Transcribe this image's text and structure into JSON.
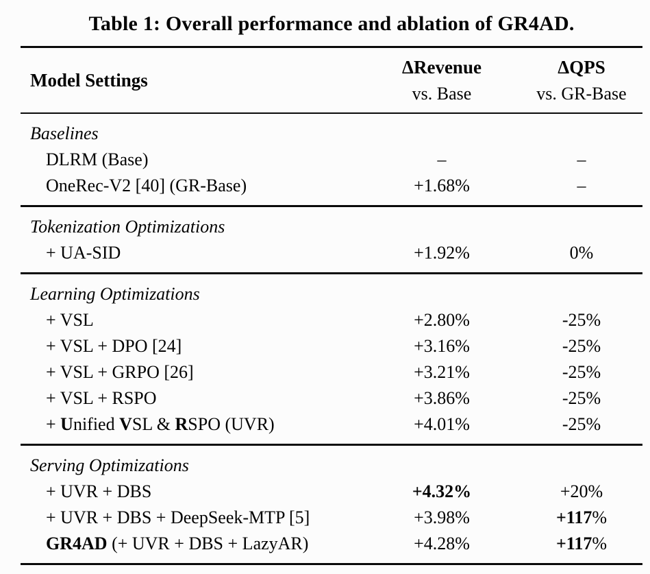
{
  "caption": "Table 1: Overall performance and ablation of GR4AD.",
  "columns": {
    "model": "Model Settings",
    "revenue": {
      "title": "ΔRevenue",
      "subtitle": "vs. Base"
    },
    "qps": {
      "title": "ΔQPS",
      "subtitle": "vs. GR-Base"
    }
  },
  "sections": [
    {
      "header": "Baselines",
      "rows": [
        {
          "label": [
            {
              "t": "DLRM (Base)"
            }
          ],
          "revenue": [
            {
              "t": "–"
            }
          ],
          "qps": [
            {
              "t": "–"
            }
          ]
        },
        {
          "label": [
            {
              "t": "OneRec-V2 [40] (GR-Base)"
            }
          ],
          "revenue": [
            {
              "t": "+1.68%"
            }
          ],
          "qps": [
            {
              "t": "–"
            }
          ]
        }
      ]
    },
    {
      "header": "Tokenization Optimizations",
      "rows": [
        {
          "label": [
            {
              "t": "+ UA-SID"
            }
          ],
          "revenue": [
            {
              "t": "+1.92%"
            }
          ],
          "qps": [
            {
              "t": "0%"
            }
          ]
        }
      ]
    },
    {
      "header": "Learning Optimizations",
      "rows": [
        {
          "label": [
            {
              "t": "+ VSL"
            }
          ],
          "revenue": [
            {
              "t": "+2.80%"
            }
          ],
          "qps": [
            {
              "t": "-25%"
            }
          ]
        },
        {
          "label": [
            {
              "t": "+ VSL + DPO [24]"
            }
          ],
          "revenue": [
            {
              "t": "+3.16%"
            }
          ],
          "qps": [
            {
              "t": "-25%"
            }
          ]
        },
        {
          "label": [
            {
              "t": "+ VSL + GRPO [26]"
            }
          ],
          "revenue": [
            {
              "t": "+3.21%"
            }
          ],
          "qps": [
            {
              "t": "-25%"
            }
          ]
        },
        {
          "label": [
            {
              "t": "+ VSL + RSPO"
            }
          ],
          "revenue": [
            {
              "t": "+3.86%"
            }
          ],
          "qps": [
            {
              "t": "-25%"
            }
          ]
        },
        {
          "label": [
            {
              "t": "+ "
            },
            {
              "t": "U",
              "b": true
            },
            {
              "t": "nified "
            },
            {
              "t": "V",
              "b": true
            },
            {
              "t": "SL & "
            },
            {
              "t": "R",
              "b": true
            },
            {
              "t": "SPO (UVR)"
            }
          ],
          "revenue": [
            {
              "t": "+4.01%"
            }
          ],
          "qps": [
            {
              "t": "-25%"
            }
          ]
        }
      ]
    },
    {
      "header": "Serving Optimizations",
      "rows": [
        {
          "label": [
            {
              "t": "+ UVR + DBS"
            }
          ],
          "revenue": [
            {
              "t": "+4.32%",
              "b": true
            }
          ],
          "qps": [
            {
              "t": "+20%"
            }
          ]
        },
        {
          "label": [
            {
              "t": "+ UVR + DBS + DeepSeek-MTP [5]"
            }
          ],
          "revenue": [
            {
              "t": "+3.98%"
            }
          ],
          "qps": [
            {
              "t": "+117",
              "b": true
            },
            {
              "t": "%"
            }
          ]
        },
        {
          "label": [
            {
              "t": "GR4AD",
              "b": true
            },
            {
              "t": " (+ UVR + DBS + LazyAR)"
            }
          ],
          "revenue": [
            {
              "t": "+4.28%"
            }
          ],
          "qps": [
            {
              "t": "+117",
              "b": true
            },
            {
              "t": "%"
            }
          ]
        }
      ]
    }
  ]
}
